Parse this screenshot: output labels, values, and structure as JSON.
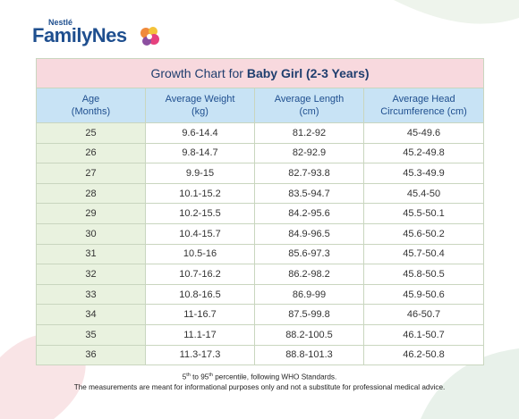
{
  "header": {
    "brand_small": "Nestlé",
    "brand": "FamilyNes"
  },
  "table": {
    "title_prefix": "Growth Chart for ",
    "title_emphasis": "Baby Girl (2-3 Years)",
    "columns": [
      [
        "Age",
        "(Months)"
      ],
      [
        "Average Weight",
        "(kg)"
      ],
      [
        "Average Length",
        "(cm)"
      ],
      [
        "Average Head",
        "Circumference (cm)"
      ]
    ],
    "rows": [
      [
        "25",
        "9.6-14.4",
        "81.2-92",
        "45-49.6"
      ],
      [
        "26",
        "9.8-14.7",
        "82-92.9",
        "45.2-49.8"
      ],
      [
        "27",
        "9.9-15",
        "82.7-93.8",
        "45.3-49.9"
      ],
      [
        "28",
        "10.1-15.2",
        "83.5-94.7",
        "45.4-50"
      ],
      [
        "29",
        "10.2-15.5",
        "84.2-95.6",
        "45.5-50.1"
      ],
      [
        "30",
        "10.4-15.7",
        "84.9-96.5",
        "45.6-50.2"
      ],
      [
        "31",
        "10.5-16",
        "85.6-97.3",
        "45.7-50.4"
      ],
      [
        "32",
        "10.7-16.2",
        "86.2-98.2",
        "45.8-50.5"
      ],
      [
        "33",
        "10.8-16.5",
        "86.9-99",
        "45.9-50.6"
      ],
      [
        "34",
        "11-16.7",
        "87.5-99.8",
        "46-50.7"
      ],
      [
        "35",
        "11.1-17",
        "88.2-100.5",
        "46.1-50.7"
      ],
      [
        "36",
        "11.3-17.3",
        "88.8-101.3",
        "46.2-50.8"
      ]
    ]
  },
  "footnote": {
    "n1": "5",
    "s1": "th",
    "mid": " to 95",
    "s2": "th",
    "rest": " percentile, following WHO Standards.",
    "line2": "The measurements are meant for informational purposes only and not a substitute for professional medical advice."
  }
}
